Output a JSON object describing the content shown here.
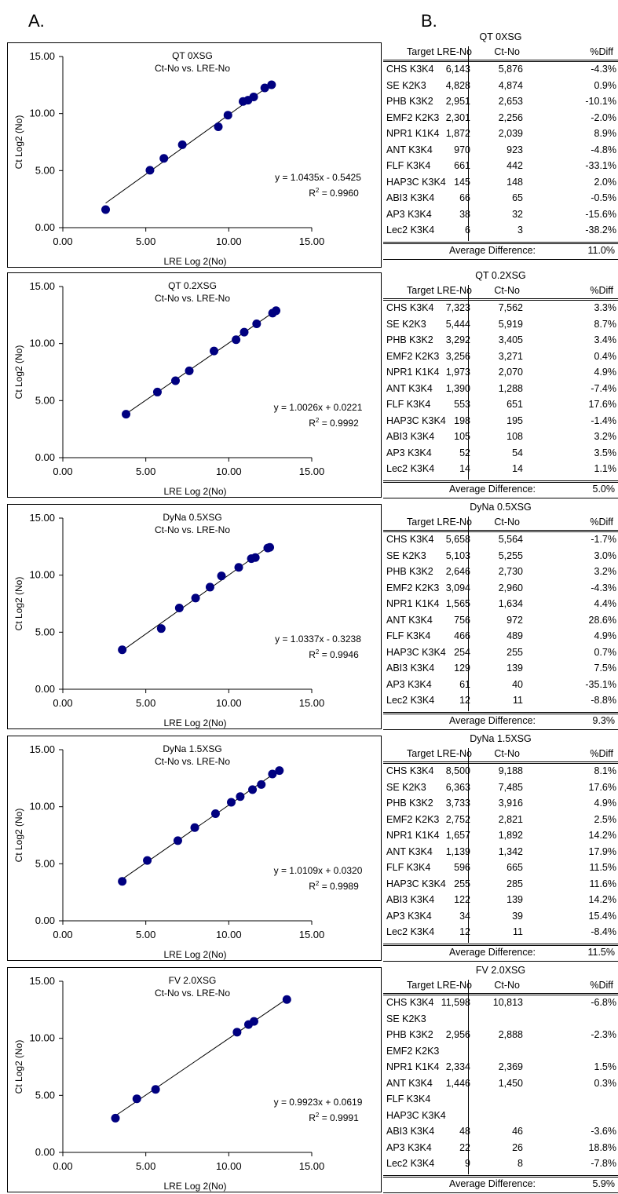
{
  "labels": {
    "a": "A.",
    "b": "B."
  },
  "chart_data": [
    {
      "type": "scatter",
      "title": "QT 0XSG",
      "subtitle": "Ct-No vs. LRE-No",
      "xlabel": "LRE Log 2(No)",
      "ylabel": "Ct Log2 (No)",
      "xlim": [
        0,
        15
      ],
      "ylim": [
        0,
        15
      ],
      "xticks": [
        "0.00",
        "5.00",
        "10.00",
        "15.00"
      ],
      "yticks": [
        "0.00",
        "5.00",
        "10.00",
        "15.00"
      ],
      "equation": "y = 1.0435x - 0.5425",
      "r2": "= 0.9960",
      "slope": 1.0435,
      "intercept": -0.5425,
      "points": [
        [
          2.58,
          1.58
        ],
        [
          5.25,
          5.03
        ],
        [
          6.09,
          6.07
        ],
        [
          7.2,
          7.27
        ],
        [
          9.37,
          8.84
        ],
        [
          9.95,
          9.86
        ],
        [
          10.86,
          11.06
        ],
        [
          11.16,
          11.17
        ],
        [
          11.5,
          11.46
        ],
        [
          12.17,
          12.25
        ],
        [
          12.58,
          12.52
        ]
      ]
    },
    {
      "type": "scatter",
      "title": "QT 0.2XSG",
      "subtitle": "Ct-No vs. LRE-No",
      "xlabel": "LRE Log 2(No)",
      "ylabel": "Ct Log2 (No)",
      "xlim": [
        0,
        15
      ],
      "ylim": [
        0,
        15
      ],
      "xticks": [
        "0.00",
        "5.00",
        "10.00",
        "15.00"
      ],
      "yticks": [
        "0.00",
        "5.00",
        "10.00",
        "15.00"
      ],
      "equation": "y = 1.0026x + 0.0221",
      "r2": "= 0.9992",
      "slope": 1.0026,
      "intercept": 0.0221,
      "points": [
        [
          3.81,
          3.81
        ],
        [
          5.7,
          5.75
        ],
        [
          6.79,
          6.74
        ],
        [
          7.62,
          7.61
        ],
        [
          9.11,
          9.35
        ],
        [
          10.44,
          10.34
        ],
        [
          10.93,
          11.0
        ],
        [
          11.68,
          11.73
        ],
        [
          12.64,
          12.67
        ],
        [
          12.85,
          12.88
        ]
      ]
    },
    {
      "type": "scatter",
      "title": "DyNa 0.5XSG",
      "subtitle": "Ct-No vs. LRE-No",
      "xlabel": "LRE Log 2(No)",
      "ylabel": "Ct Log2 (No)",
      "xlim": [
        0,
        15
      ],
      "ylim": [
        0,
        15
      ],
      "xticks": [
        "0.00",
        "5.00",
        "10.00",
        "15.00"
      ],
      "yticks": [
        "0.00",
        "5.00",
        "10.00",
        "15.00"
      ],
      "equation": "y = 1.0337x - 0.3238",
      "r2": "= 0.9946",
      "slope": 1.0337,
      "intercept": -0.3238,
      "points": [
        [
          3.58,
          3.46
        ],
        [
          5.93,
          5.32
        ],
        [
          7.02,
          7.12
        ],
        [
          8.0,
          7.99
        ],
        [
          8.87,
          8.95
        ],
        [
          9.56,
          9.93
        ],
        [
          10.6,
          10.68
        ],
        [
          11.36,
          11.45
        ],
        [
          11.6,
          11.54
        ],
        [
          12.35,
          12.38
        ],
        [
          12.47,
          12.44
        ]
      ]
    },
    {
      "type": "scatter",
      "title": "DyNa 1.5XSG",
      "subtitle": "Ct-No vs. LRE-No",
      "xlabel": "LRE Log 2(No)",
      "ylabel": "Ct Log2 (No)",
      "xlim": [
        0,
        15
      ],
      "ylim": [
        0,
        15
      ],
      "xticks": [
        "0.00",
        "5.00",
        "10.00",
        "15.00"
      ],
      "yticks": [
        "0.00",
        "5.00",
        "10.00",
        "15.00"
      ],
      "equation": "y = 1.0109x + 0.0320",
      "r2": "= 0.9989",
      "slope": 1.0109,
      "intercept": 0.032,
      "points": [
        [
          3.58,
          3.46
        ],
        [
          5.09,
          5.29
        ],
        [
          6.93,
          7.03
        ],
        [
          7.95,
          8.17
        ],
        [
          9.2,
          9.39
        ],
        [
          10.15,
          10.39
        ],
        [
          10.69,
          10.89
        ],
        [
          11.43,
          11.5
        ],
        [
          11.96,
          11.95
        ],
        [
          12.63,
          12.87
        ],
        [
          13.05,
          13.17
        ]
      ]
    },
    {
      "type": "scatter",
      "title": "FV 2.0XSG",
      "subtitle": "Ct-No vs. LRE-No",
      "xlabel": "LRE Log 2(No)",
      "ylabel": "Ct Log2 (No)",
      "xlim": [
        0,
        15
      ],
      "ylim": [
        0,
        15
      ],
      "xticks": [
        "0.00",
        "5.00",
        "10.00",
        "15.00"
      ],
      "yticks": [
        "0.00",
        "5.00",
        "10.00",
        "15.00"
      ],
      "equation": "y = 0.9923x + 0.0619",
      "r2": "= 0.9991",
      "slope": 0.9923,
      "intercept": 0.0619,
      "points": [
        [
          3.17,
          3.0
        ],
        [
          4.46,
          4.7
        ],
        [
          5.59,
          5.52
        ],
        [
          10.5,
          10.54
        ],
        [
          11.19,
          11.21
        ],
        [
          11.52,
          11.48
        ],
        [
          13.5,
          13.4
        ]
      ]
    }
  ],
  "tables": [
    {
      "title": "QT 0XSG",
      "headers": [
        "Target",
        "LRE-No",
        "Ct-No",
        "%Diff"
      ],
      "rows": [
        [
          "CHS K3K4",
          "6,143",
          "5,876",
          "-4.3%"
        ],
        [
          "SE K2K3",
          "4,828",
          "4,874",
          "0.9%"
        ],
        [
          "PHB K3K2",
          "2,951",
          "2,653",
          "-10.1%"
        ],
        [
          "EMF2 K2K3",
          "2,301",
          "2,256",
          "-2.0%"
        ],
        [
          "NPR1 K1K4",
          "1,872",
          "2,039",
          "8.9%"
        ],
        [
          "ANT K3K4",
          "970",
          "923",
          "-4.8%"
        ],
        [
          "FLF K3K4",
          "661",
          "442",
          "-33.1%"
        ],
        [
          "HAP3C K3K4",
          "145",
          "148",
          "2.0%"
        ],
        [
          "ABI3 K3K4",
          "66",
          "65",
          "-0.5%"
        ],
        [
          "AP3 K3K4",
          "38",
          "32",
          "-15.6%"
        ],
        [
          "Lec2 K3K4",
          "6",
          "3",
          "-38.2%"
        ]
      ],
      "avg_label": "Average Difference:",
      "avg_value": "11.0%"
    },
    {
      "title": "QT 0.2XSG",
      "headers": [
        "Target",
        "LRE-No",
        "Ct-No",
        "%Diff"
      ],
      "rows": [
        [
          "CHS K3K4",
          "7,323",
          "7,562",
          "3.3%"
        ],
        [
          "SE K2K3",
          "5,444",
          "5,919",
          "8.7%"
        ],
        [
          "PHB K3K2",
          "3,292",
          "3,405",
          "3.4%"
        ],
        [
          "EMF2 K2K3",
          "3,256",
          "3,271",
          "0.4%"
        ],
        [
          "NPR1 K1K4",
          "1,973",
          "2,070",
          "4.9%"
        ],
        [
          "ANT K3K4",
          "1,390",
          "1,288",
          "-7.4%"
        ],
        [
          "FLF K3K4",
          "553",
          "651",
          "17.6%"
        ],
        [
          "HAP3C K3K4",
          "198",
          "195",
          "-1.4%"
        ],
        [
          "ABI3 K3K4",
          "105",
          "108",
          "3.2%"
        ],
        [
          "AP3 K3K4",
          "52",
          "54",
          "3.5%"
        ],
        [
          "Lec2 K3K4",
          "14",
          "14",
          "1.1%"
        ]
      ],
      "avg_label": "Average Difference:",
      "avg_value": "5.0%"
    },
    {
      "title": "DyNa 0.5XSG",
      "headers": [
        "Target",
        "LRE-No",
        "Ct-No",
        "%Diff"
      ],
      "rows": [
        [
          "CHS K3K4",
          "5,658",
          "5,564",
          "-1.7%"
        ],
        [
          "SE K2K3",
          "5,103",
          "5,255",
          "3.0%"
        ],
        [
          "PHB K3K2",
          "2,646",
          "2,730",
          "3.2%"
        ],
        [
          "EMF2 K2K3",
          "3,094",
          "2,960",
          "-4.3%"
        ],
        [
          "NPR1 K1K4",
          "1,565",
          "1,634",
          "4.4%"
        ],
        [
          "ANT K3K4",
          "756",
          "972",
          "28.6%"
        ],
        [
          "FLF K3K4",
          "466",
          "489",
          "4.9%"
        ],
        [
          "HAP3C K3K4",
          "254",
          "255",
          "0.7%"
        ],
        [
          "ABI3 K3K4",
          "129",
          "139",
          "7.5%"
        ],
        [
          "AP3 K3K4",
          "61",
          "40",
          "-35.1%"
        ],
        [
          "Lec2 K3K4",
          "12",
          "11",
          "-8.8%"
        ]
      ],
      "avg_label": "Average Difference:",
      "avg_value": "9.3%"
    },
    {
      "title": "DyNa 1.5XSG",
      "headers": [
        "Target",
        "LRE-No",
        "Ct-No",
        "%Diff"
      ],
      "rows": [
        [
          "CHS K3K4",
          "8,500",
          "9,188",
          "8.1%"
        ],
        [
          "SE K2K3",
          "6,363",
          "7,485",
          "17.6%"
        ],
        [
          "PHB K3K2",
          "3,733",
          "3,916",
          "4.9%"
        ],
        [
          "EMF2 K2K3",
          "2,752",
          "2,821",
          "2.5%"
        ],
        [
          "NPR1 K1K4",
          "1,657",
          "1,892",
          "14.2%"
        ],
        [
          "ANT K3K4",
          "1,139",
          "1,342",
          "17.9%"
        ],
        [
          "FLF K3K4",
          "596",
          "665",
          "11.5%"
        ],
        [
          "HAP3C K3K4",
          "255",
          "285",
          "11.6%"
        ],
        [
          "ABI3 K3K4",
          "122",
          "139",
          "14.2%"
        ],
        [
          "AP3 K3K4",
          "34",
          "39",
          "15.4%"
        ],
        [
          "Lec2 K3K4",
          "12",
          "11",
          "-8.4%"
        ]
      ],
      "avg_label": "Average Difference:",
      "avg_value": "11.5%"
    },
    {
      "title": "FV 2.0XSG",
      "headers": [
        "Target",
        "LRE-No",
        "Ct-No",
        "%Diff"
      ],
      "rows": [
        [
          "CHS K3K4",
          "11,598",
          "10,813",
          "-6.8%"
        ],
        [
          "SE K2K3",
          "",
          "",
          ""
        ],
        [
          "PHB K3K2",
          "2,956",
          "2,888",
          "-2.3%"
        ],
        [
          "EMF2 K2K3",
          "",
          "",
          ""
        ],
        [
          "NPR1 K1K4",
          "2,334",
          "2,369",
          "1.5%"
        ],
        [
          "ANT K3K4",
          "1,446",
          "1,450",
          "0.3%"
        ],
        [
          "FLF K3K4",
          "",
          "",
          ""
        ],
        [
          "HAP3C K3K4",
          "",
          "",
          ""
        ],
        [
          "ABI3 K3K4",
          "48",
          "46",
          "-3.6%"
        ],
        [
          "AP3 K3K4",
          "22",
          "26",
          "18.8%"
        ],
        [
          "Lec2 K3K4",
          "9",
          "8",
          "-7.8%"
        ]
      ],
      "avg_label": "Average Difference:",
      "avg_value": "5.9%"
    }
  ]
}
